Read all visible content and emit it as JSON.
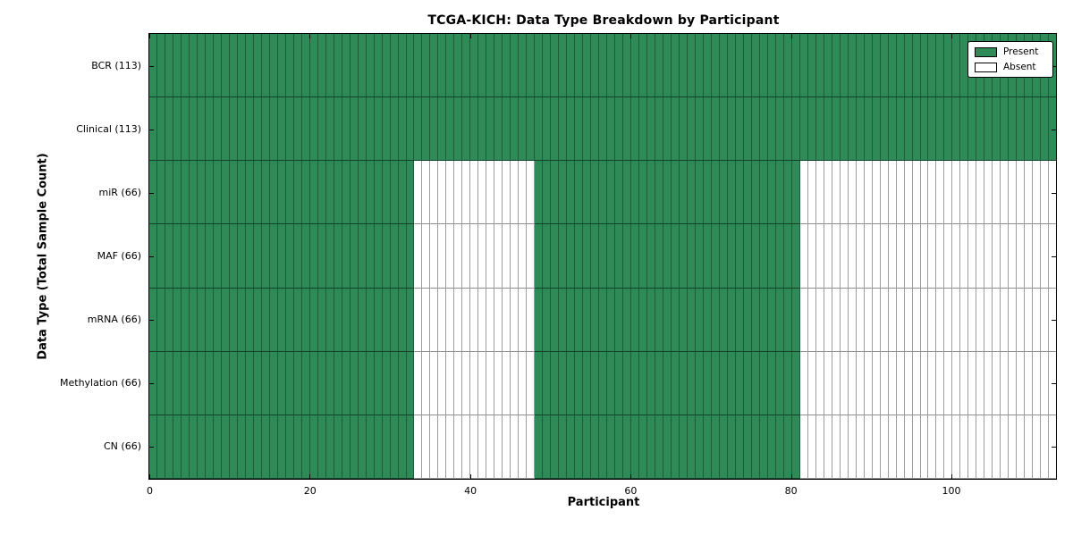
{
  "figure": {
    "title": "TCGA-KICH: Data Type Breakdown by Participant",
    "xlabel": "Participant",
    "ylabel": "Data Type (Total Sample Count)"
  },
  "colors": {
    "present": "#2e8b57",
    "absent": "#ffffff",
    "frame": "#000000"
  },
  "legend": {
    "present_label": "Present",
    "absent_label": "Absent"
  },
  "chart_data": {
    "type": "heatmap",
    "title": "TCGA-KICH: Data Type Breakdown by Participant",
    "xlabel": "Participant",
    "ylabel": "Data Type (Total Sample Count)",
    "n_participants": 113,
    "x_range": [
      0,
      113
    ],
    "x_ticks": [
      0,
      20,
      40,
      60,
      80,
      100
    ],
    "grid": "per-cell edges",
    "legend_position": "upper right",
    "legend": [
      {
        "label": "Present",
        "color": "#2e8b57"
      },
      {
        "label": "Absent",
        "color": "#ffffff"
      }
    ],
    "rows": [
      {
        "label": "BCR (113)",
        "total_samples": 113,
        "present_ranges": [
          [
            0,
            113
          ]
        ]
      },
      {
        "label": "Clinical (113)",
        "total_samples": 113,
        "present_ranges": [
          [
            0,
            113
          ]
        ]
      },
      {
        "label": "miR (66)",
        "total_samples": 66,
        "present_ranges": [
          [
            0,
            33
          ],
          [
            48,
            81
          ]
        ]
      },
      {
        "label": "MAF (66)",
        "total_samples": 66,
        "present_ranges": [
          [
            0,
            33
          ],
          [
            48,
            81
          ]
        ]
      },
      {
        "label": "mRNA (66)",
        "total_samples": 66,
        "present_ranges": [
          [
            0,
            33
          ],
          [
            48,
            81
          ]
        ]
      },
      {
        "label": "Methylation (66)",
        "total_samples": 66,
        "present_ranges": [
          [
            0,
            33
          ],
          [
            48,
            81
          ]
        ]
      },
      {
        "label": "CN (66)",
        "total_samples": 66,
        "present_ranges": [
          [
            0,
            33
          ],
          [
            48,
            81
          ]
        ]
      }
    ]
  }
}
